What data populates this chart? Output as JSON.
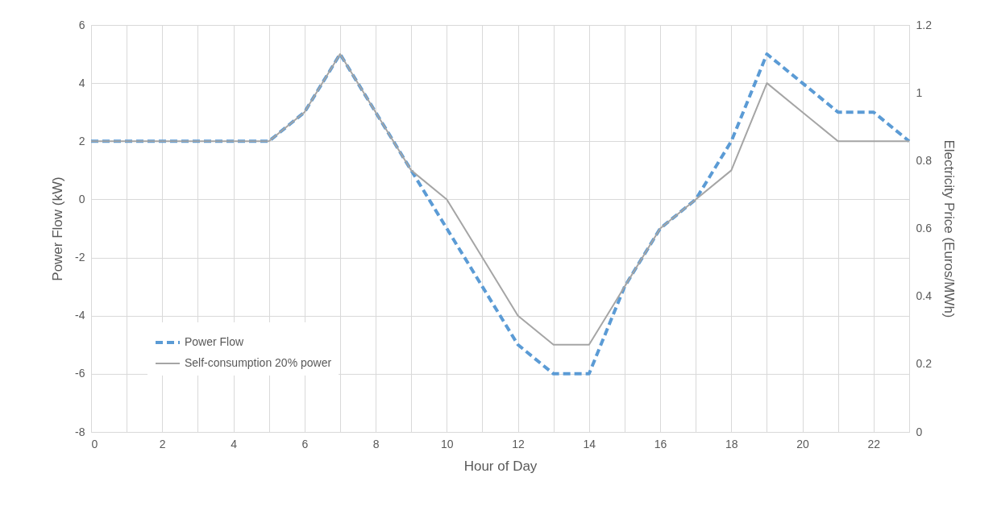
{
  "chart_data": {
    "type": "line",
    "xlabel": "Hour of Day",
    "ylabel": "Power Flow (kW)",
    "y2label": "Electricity Price (Euros/MWh)",
    "x": [
      0,
      1,
      2,
      3,
      4,
      5,
      6,
      7,
      8,
      9,
      10,
      11,
      12,
      13,
      14,
      15,
      16,
      17,
      18,
      19,
      20,
      21,
      22,
      23
    ],
    "series": [
      {
        "name": "Power Flow",
        "color": "#5b9bd5",
        "line_style": "dashed",
        "values": [
          2,
          2,
          2,
          2,
          2,
          2,
          3,
          5,
          3,
          1,
          -1,
          -3,
          -5,
          -6,
          -6,
          -3,
          -1,
          0,
          2,
          5,
          4,
          3,
          3,
          2
        ]
      },
      {
        "name": "Self-consumption 20% power",
        "color": "#a5a5a5",
        "line_style": "solid",
        "values": [
          2,
          2,
          2,
          2,
          2,
          2,
          3,
          5,
          3,
          1,
          0,
          -2,
          -4,
          -5,
          -5,
          -3,
          -1,
          0,
          1,
          4,
          3,
          2,
          2,
          2
        ]
      }
    ],
    "xlim": [
      0,
      23
    ],
    "xticks": [
      0,
      {
        "value": 1,
        "label": null
      },
      2,
      {
        "value": 3,
        "label": null
      },
      4,
      {
        "value": 5,
        "label": null
      },
      6,
      {
        "value": 7,
        "label": null
      },
      8,
      {
        "value": 9,
        "label": null
      },
      10,
      {
        "value": 11,
        "label": null
      },
      12,
      {
        "value": 13,
        "label": null
      },
      14,
      {
        "value": 15,
        "label": null
      },
      16,
      {
        "value": 17,
        "label": null
      },
      18,
      {
        "value": 19,
        "label": null
      },
      20,
      {
        "value": 21,
        "label": null
      },
      22,
      {
        "value": 23,
        "label": null
      }
    ],
    "ylim": [
      -8,
      6
    ],
    "yticks": [
      -8,
      -6,
      -4,
      -2,
      0,
      2,
      4,
      6
    ],
    "y2lim": [
      0,
      1.2
    ],
    "y2ticks": [
      0,
      0.2,
      0.4,
      0.6,
      0.8,
      1,
      1.2
    ],
    "grid": true,
    "legend": "bottom left",
    "marker": "none"
  }
}
